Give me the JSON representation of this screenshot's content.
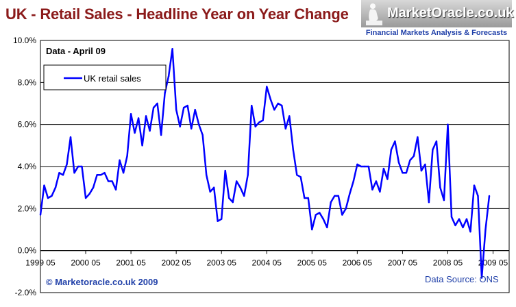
{
  "page": {
    "title": "UK - Retail Sales - Headline Year on Year Change"
  },
  "logo": {
    "name": "MarketOracle.co.uk",
    "tagline": "Financial Markets Analysis & Forecasts"
  },
  "chart_data": {
    "type": "line",
    "title": "UK - Retail Sales - Headline Year on Year Change",
    "subtitle": "Data - April 09",
    "xlabel": "",
    "ylabel": "",
    "ylim": [
      -2.0,
      10.0
    ],
    "yticks": [
      "10.0%",
      "8.0%",
      "6.0%",
      "4.0%",
      "2.0%",
      "0.0%",
      "-2.0%"
    ],
    "xticks": [
      "1999 05",
      "2000 05",
      "2001 05",
      "2002 05",
      "2003 05",
      "2004 05",
      "2005 05",
      "2006 05",
      "2007 05",
      "2008 05",
      "2009 05"
    ],
    "grid": "horizontal",
    "legend_position": "top-left",
    "copyright": "© Marketoracle.co.uk  2009",
    "source": "Data Source: ONS",
    "colors": {
      "series": "#0000ff",
      "grid": "#000000",
      "title": "#8b1a1a",
      "copyright": "#1f3fa8"
    },
    "series": [
      {
        "name": "UK retail sales",
        "start": "1999-05",
        "frequency": "monthly",
        "values": [
          1.7,
          3.1,
          2.5,
          2.6,
          3.0,
          3.7,
          3.6,
          4.1,
          5.4,
          3.7,
          4.0,
          4.0,
          2.5,
          2.7,
          3.0,
          3.6,
          3.6,
          3.7,
          3.3,
          3.3,
          2.9,
          4.3,
          3.7,
          4.5,
          6.5,
          5.6,
          6.3,
          5.0,
          6.4,
          5.7,
          6.8,
          7.0,
          5.5,
          7.5,
          8.3,
          9.6,
          6.7,
          5.9,
          6.8,
          6.9,
          5.8,
          6.7,
          6.0,
          5.5,
          3.6,
          2.8,
          3.0,
          1.4,
          1.5,
          3.8,
          2.5,
          2.3,
          3.3,
          3.0,
          2.6,
          3.6,
          6.9,
          5.9,
          6.1,
          6.2,
          7.8,
          7.2,
          6.7,
          7.0,
          6.9,
          5.8,
          6.4,
          4.8,
          3.6,
          3.5,
          2.5,
          2.5,
          1.0,
          1.7,
          1.8,
          1.5,
          1.1,
          2.3,
          2.6,
          2.6,
          1.7,
          2.0,
          2.7,
          3.3,
          4.1,
          4.0,
          4.0,
          4.0,
          2.9,
          3.3,
          2.8,
          3.9,
          3.4,
          4.8,
          5.2,
          4.2,
          3.7,
          3.7,
          4.3,
          4.5,
          5.4,
          3.8,
          4.1,
          2.3,
          4.8,
          5.2,
          3.0,
          2.4,
          6.0,
          1.6,
          1.2,
          1.5,
          1.1,
          1.5,
          0.9,
          3.1,
          2.6,
          -1.3,
          1.0,
          2.6
        ]
      }
    ]
  }
}
